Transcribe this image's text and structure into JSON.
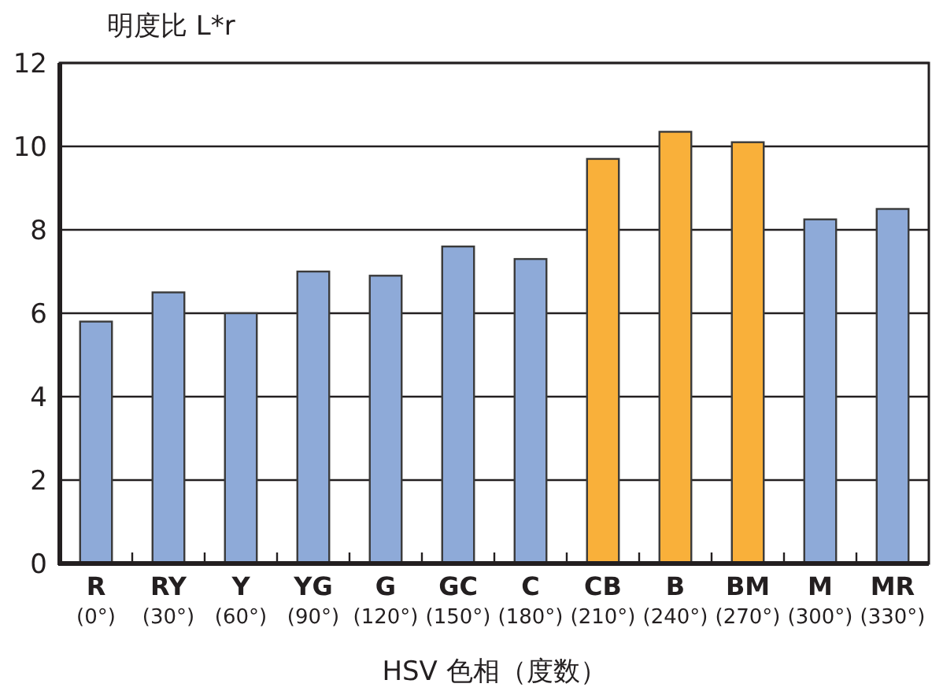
{
  "chart_data": {
    "type": "bar",
    "ylabel": "明度比 L*r",
    "xlabel": "HSV 色相（度数）",
    "categories": [
      "R\n(0°)",
      "RY\n(30°)",
      "Y\n(60°)",
      "YG\n(90°)",
      "G\n(120°)",
      "GC\n(150°)",
      "C\n(180°)",
      "CB\n(210°)",
      "B\n(240°)",
      "BM\n(270°)",
      "M\n(300°)",
      "MR\n(330°)"
    ],
    "values": [
      5.8,
      6.5,
      6.0,
      7.0,
      6.9,
      7.6,
      7.3,
      9.7,
      10.35,
      10.1,
      8.25,
      8.5
    ],
    "colors": [
      "#8eaad8",
      "#8eaad8",
      "#8eaad8",
      "#8eaad8",
      "#8eaad8",
      "#8eaad8",
      "#8eaad8",
      "#f9b03a",
      "#f9b03a",
      "#f9b03a",
      "#8eaad8",
      "#8eaad8"
    ],
    "ylim": [
      0,
      12
    ],
    "yticks": [
      0,
      2,
      4,
      6,
      8,
      10,
      12
    ],
    "grid": "y"
  }
}
